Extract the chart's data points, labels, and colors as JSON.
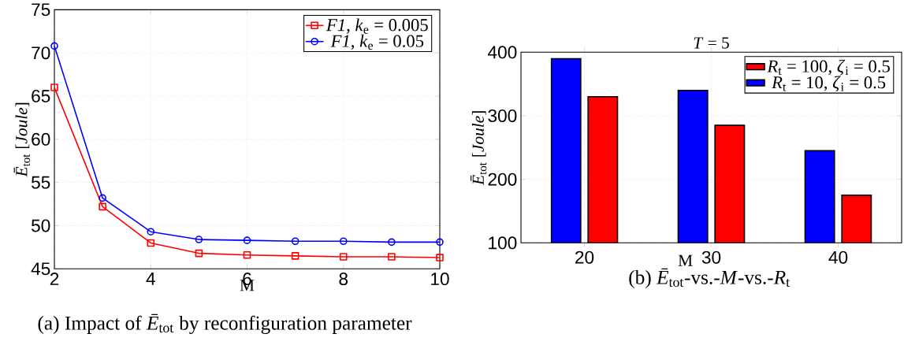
{
  "chart_data": [
    {
      "type": "line",
      "xlabel": "M",
      "ylabel": "*Ē*$_{tot}$ [*Joule*]",
      "x": [
        2,
        3,
        4,
        5,
        6,
        7,
        8,
        9,
        10
      ],
      "series": [
        {
          "name": "*F1*, *k*$_{e}$ = 0.005",
          "color": "#ff0000",
          "marker": "square",
          "values": [
            66,
            52.2,
            48,
            46.8,
            46.6,
            46.5,
            46.4,
            46.4,
            46.3
          ]
        },
        {
          "name": "*F1*, *k*$_{e}$ = 0.05",
          "color": "#0000ff",
          "marker": "circle",
          "values": [
            70.8,
            53.2,
            49.3,
            48.4,
            48.3,
            48.2,
            48.2,
            48.1,
            48.1
          ]
        }
      ],
      "xlim": [
        2,
        10
      ],
      "xticks": [
        2,
        4,
        6,
        8,
        10
      ],
      "ylim": [
        45,
        75
      ],
      "yticks": [
        45,
        50,
        55,
        60,
        65,
        70,
        75
      ],
      "grid": true,
      "legend": "top right",
      "annotations": [
        "(a) Impact of *Ē*$_{tot}$ by reconfiguration parameter"
      ]
    },
    {
      "type": "bar",
      "title": "*T* = 5",
      "xlabel": "M",
      "ylabel": "*Ē*$_{tot}$ [*Joule*]",
      "categories": [
        "20",
        "30",
        "40"
      ],
      "series": [
        {
          "name": "*R*$_{t}$ = 10, *ζ*$_{i}$ = 0.5",
          "color": "#0000ff",
          "values": [
            390,
            340,
            245
          ]
        },
        {
          "name": "*R*$_{t}$ = 100, *ζ*$_{i}$ = 0.5",
          "color": "#ff0000",
          "values": [
            330,
            285,
            175
          ]
        }
      ],
      "ylim": [
        100,
        400
      ],
      "yticks": [
        100,
        200,
        300,
        400
      ],
      "grid": true,
      "legend": "top right",
      "annotations": [
        "(b) *Ē*$_{tot}$-vs.-*M*-vs.-*R*$_{t}$"
      ]
    }
  ]
}
